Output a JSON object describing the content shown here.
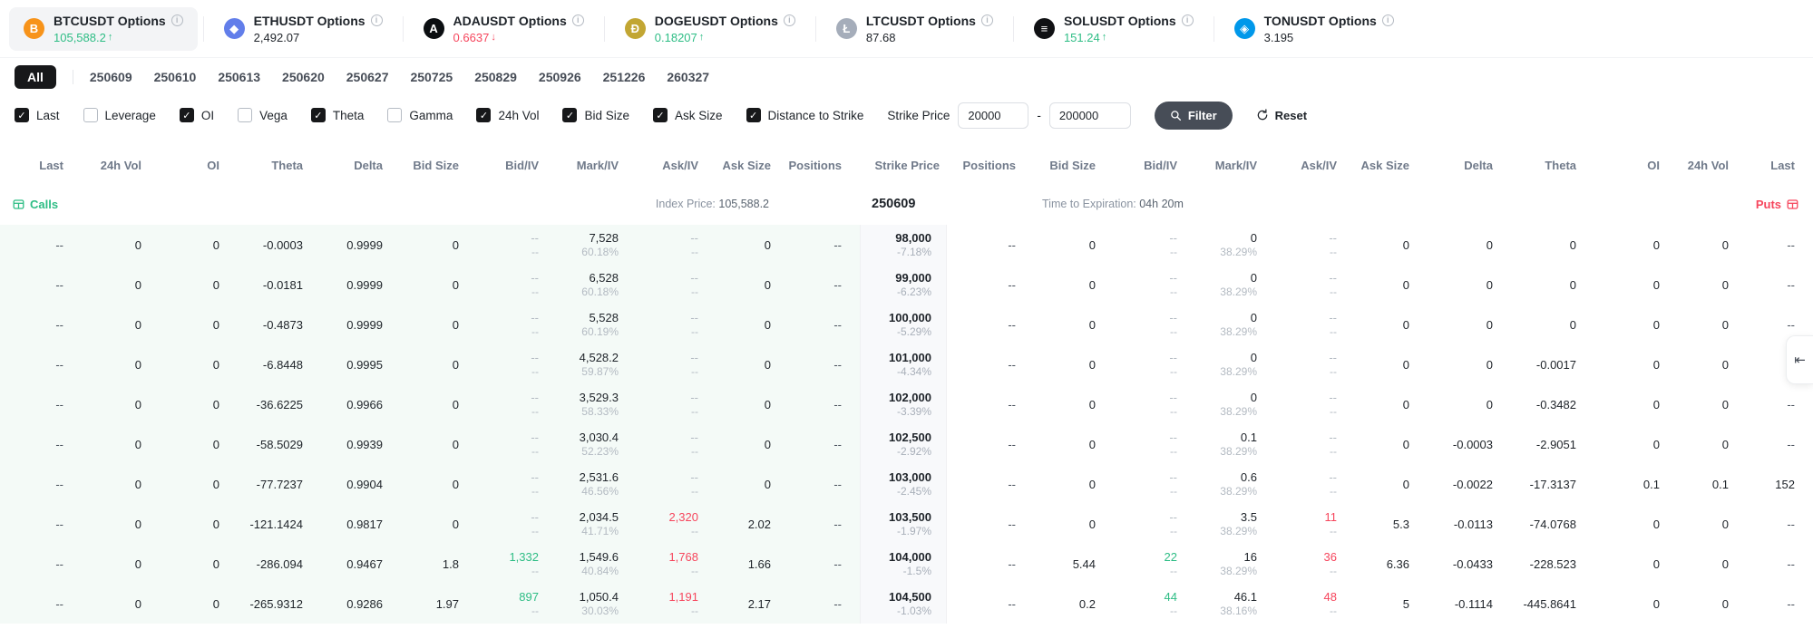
{
  "app": {
    "collapse_icon": "⇤"
  },
  "tickers": [
    {
      "symbol": "BTCUSDT Options",
      "price": "105,588.2",
      "dir": "up",
      "selected": true,
      "color": "#F7931A",
      "glyph": "B"
    },
    {
      "symbol": "ETHUSDT Options",
      "price": "2,492.07",
      "dir": "flat",
      "selected": false,
      "color": "#627EEA",
      "glyph": "◆"
    },
    {
      "symbol": "ADAUSDT Options",
      "price": "0.6637",
      "dir": "down",
      "selected": false,
      "color": "#0B0E11",
      "glyph": "A"
    },
    {
      "symbol": "DOGEUSDT Options",
      "price": "0.18207",
      "dir": "up",
      "selected": false,
      "color": "#C2A633",
      "glyph": "Ð"
    },
    {
      "symbol": "LTCUSDT Options",
      "price": "87.68",
      "dir": "flat",
      "selected": false,
      "color": "#A5ADBA",
      "glyph": "Ł"
    },
    {
      "symbol": "SOLUSDT Options",
      "price": "151.24",
      "dir": "up",
      "selected": false,
      "color": "#101114",
      "glyph": "≡"
    },
    {
      "symbol": "TONUSDT Options",
      "price": "3.195",
      "dir": "flat",
      "selected": false,
      "color": "#0098EA",
      "glyph": "◈"
    }
  ],
  "date_tabs": [
    {
      "label": "All",
      "active": true
    },
    {
      "label": "250609",
      "active": false
    },
    {
      "label": "250610",
      "active": false
    },
    {
      "label": "250613",
      "active": false
    },
    {
      "label": "250620",
      "active": false
    },
    {
      "label": "250627",
      "active": false
    },
    {
      "label": "250725",
      "active": false
    },
    {
      "label": "250829",
      "active": false
    },
    {
      "label": "250926",
      "active": false
    },
    {
      "label": "251226",
      "active": false
    },
    {
      "label": "260327",
      "active": false
    }
  ],
  "filters": [
    {
      "label": "Last",
      "checked": true
    },
    {
      "label": "Leverage",
      "checked": false
    },
    {
      "label": "OI",
      "checked": true
    },
    {
      "label": "Vega",
      "checked": false
    },
    {
      "label": "Theta",
      "checked": true
    },
    {
      "label": "Gamma",
      "checked": false
    },
    {
      "label": "24h Vol",
      "checked": true
    },
    {
      "label": "Bid Size",
      "checked": true
    },
    {
      "label": "Ask Size",
      "checked": true
    },
    {
      "label": "Distance to Strike",
      "checked": true
    }
  ],
  "strike_filter": {
    "label": "Strike Price",
    "min": "20000",
    "dash": "-",
    "max": "200000"
  },
  "buttons": {
    "filter": "Filter",
    "reset": "Reset"
  },
  "table": {
    "headers_left": [
      "Last",
      "24h Vol",
      "OI",
      "Theta",
      "Delta",
      "Bid Size",
      "Bid/IV",
      "Mark/IV",
      "Ask/IV",
      "Ask Size",
      "Positions"
    ],
    "strike_header": "Strike Price",
    "headers_right": [
      "Positions",
      "Bid Size",
      "Bid/IV",
      "Mark/IV",
      "Ask/IV",
      "Ask Size",
      "Delta",
      "Theta",
      "OI",
      "24h Vol",
      "Last"
    ],
    "calls_label": "Calls",
    "puts_label": "Puts",
    "index_label": "Index Price:",
    "index_value": "105,588.2",
    "expiry_code": "250609",
    "tte_label": "Time to Expiration:",
    "tte_value": "04h 20m",
    "rows": [
      {
        "call": {
          "last": "--",
          "vol": "0",
          "oi": "0",
          "theta": "-0.0003",
          "delta": "0.9999",
          "bid_size": "0",
          "bid": "--",
          "bid_iv": "--",
          "mark": "7,528",
          "mark_iv": "60.18%",
          "ask": "--",
          "ask_iv": "--",
          "ask_size": "0",
          "positions": "--"
        },
        "strike": {
          "price": "98,000",
          "pct": "-7.18%"
        },
        "put": {
          "positions": "--",
          "bid_size": "0",
          "bid": "--",
          "bid_iv": "--",
          "mark": "0",
          "mark_iv": "38.29%",
          "ask": "--",
          "ask_iv": "--",
          "ask_size": "0",
          "delta": "0",
          "theta": "0",
          "oi": "0",
          "vol": "0",
          "last": "--"
        }
      },
      {
        "call": {
          "last": "--",
          "vol": "0",
          "oi": "0",
          "theta": "-0.0181",
          "delta": "0.9999",
          "bid_size": "0",
          "bid": "--",
          "bid_iv": "--",
          "mark": "6,528",
          "mark_iv": "60.18%",
          "ask": "--",
          "ask_iv": "--",
          "ask_size": "0",
          "positions": "--"
        },
        "strike": {
          "price": "99,000",
          "pct": "-6.23%"
        },
        "put": {
          "positions": "--",
          "bid_size": "0",
          "bid": "--",
          "bid_iv": "--",
          "mark": "0",
          "mark_iv": "38.29%",
          "ask": "--",
          "ask_iv": "--",
          "ask_size": "0",
          "delta": "0",
          "theta": "0",
          "oi": "0",
          "vol": "0",
          "last": "--"
        }
      },
      {
        "call": {
          "last": "--",
          "vol": "0",
          "oi": "0",
          "theta": "-0.4873",
          "delta": "0.9999",
          "bid_size": "0",
          "bid": "--",
          "bid_iv": "--",
          "mark": "5,528",
          "mark_iv": "60.19%",
          "ask": "--",
          "ask_iv": "--",
          "ask_size": "0",
          "positions": "--"
        },
        "strike": {
          "price": "100,000",
          "pct": "-5.29%"
        },
        "put": {
          "positions": "--",
          "bid_size": "0",
          "bid": "--",
          "bid_iv": "--",
          "mark": "0",
          "mark_iv": "38.29%",
          "ask": "--",
          "ask_iv": "--",
          "ask_size": "0",
          "delta": "0",
          "theta": "0",
          "oi": "0",
          "vol": "0",
          "last": "--"
        }
      },
      {
        "call": {
          "last": "--",
          "vol": "0",
          "oi": "0",
          "theta": "-6.8448",
          "delta": "0.9995",
          "bid_size": "0",
          "bid": "--",
          "bid_iv": "--",
          "mark": "4,528.2",
          "mark_iv": "59.87%",
          "ask": "--",
          "ask_iv": "--",
          "ask_size": "0",
          "positions": "--"
        },
        "strike": {
          "price": "101,000",
          "pct": "-4.34%"
        },
        "put": {
          "positions": "--",
          "bid_size": "0",
          "bid": "--",
          "bid_iv": "--",
          "mark": "0",
          "mark_iv": "38.29%",
          "ask": "--",
          "ask_iv": "--",
          "ask_size": "0",
          "delta": "0",
          "theta": "-0.0017",
          "oi": "0",
          "vol": "0",
          "last": "--"
        }
      },
      {
        "call": {
          "last": "--",
          "vol": "0",
          "oi": "0",
          "theta": "-36.6225",
          "delta": "0.9966",
          "bid_size": "0",
          "bid": "--",
          "bid_iv": "--",
          "mark": "3,529.3",
          "mark_iv": "58.33%",
          "ask": "--",
          "ask_iv": "--",
          "ask_size": "0",
          "positions": "--"
        },
        "strike": {
          "price": "102,000",
          "pct": "-3.39%"
        },
        "put": {
          "positions": "--",
          "bid_size": "0",
          "bid": "--",
          "bid_iv": "--",
          "mark": "0",
          "mark_iv": "38.29%",
          "ask": "--",
          "ask_iv": "--",
          "ask_size": "0",
          "delta": "0",
          "theta": "-0.3482",
          "oi": "0",
          "vol": "0",
          "last": "--"
        }
      },
      {
        "call": {
          "last": "--",
          "vol": "0",
          "oi": "0",
          "theta": "-58.5029",
          "delta": "0.9939",
          "bid_size": "0",
          "bid": "--",
          "bid_iv": "--",
          "mark": "3,030.4",
          "mark_iv": "52.23%",
          "ask": "--",
          "ask_iv": "--",
          "ask_size": "0",
          "positions": "--"
        },
        "strike": {
          "price": "102,500",
          "pct": "-2.92%"
        },
        "put": {
          "positions": "--",
          "bid_size": "0",
          "bid": "--",
          "bid_iv": "--",
          "mark": "0.1",
          "mark_iv": "38.29%",
          "ask": "--",
          "ask_iv": "--",
          "ask_size": "0",
          "delta": "-0.0003",
          "theta": "-2.9051",
          "oi": "0",
          "vol": "0",
          "last": "--"
        }
      },
      {
        "call": {
          "last": "--",
          "vol": "0",
          "oi": "0",
          "theta": "-77.7237",
          "delta": "0.9904",
          "bid_size": "0",
          "bid": "--",
          "bid_iv": "--",
          "mark": "2,531.6",
          "mark_iv": "46.56%",
          "ask": "--",
          "ask_iv": "--",
          "ask_size": "0",
          "positions": "--"
        },
        "strike": {
          "price": "103,000",
          "pct": "-2.45%"
        },
        "put": {
          "positions": "--",
          "bid_size": "0",
          "bid": "--",
          "bid_iv": "--",
          "mark": "0.6",
          "mark_iv": "38.29%",
          "ask": "--",
          "ask_iv": "--",
          "ask_size": "0",
          "delta": "-0.0022",
          "theta": "-17.3137",
          "oi": "0.1",
          "vol": "0.1",
          "last": "152"
        }
      },
      {
        "call": {
          "last": "--",
          "vol": "0",
          "oi": "0",
          "theta": "-121.1424",
          "delta": "0.9817",
          "bid_size": "0",
          "bid": "--",
          "bid_iv": "--",
          "mark": "2,034.5",
          "mark_iv": "41.71%",
          "ask": "2,320",
          "ask_iv": "--",
          "ask_size": "2.02",
          "positions": "--"
        },
        "strike": {
          "price": "103,500",
          "pct": "-1.97%"
        },
        "put": {
          "positions": "--",
          "bid_size": "0",
          "bid": "--",
          "bid_iv": "--",
          "mark": "3.5",
          "mark_iv": "38.29%",
          "ask": "11",
          "ask_iv": "--",
          "ask_size": "5.3",
          "delta": "-0.0113",
          "theta": "-74.0768",
          "oi": "0",
          "vol": "0",
          "last": "--"
        }
      },
      {
        "call": {
          "last": "--",
          "vol": "0",
          "oi": "0",
          "theta": "-286.094",
          "delta": "0.9467",
          "bid_size": "1.8",
          "bid": "1,332",
          "bid_iv": "--",
          "mark": "1,549.6",
          "mark_iv": "40.84%",
          "ask": "1,768",
          "ask_iv": "--",
          "ask_size": "1.66",
          "positions": "--"
        },
        "strike": {
          "price": "104,000",
          "pct": "-1.5%"
        },
        "put": {
          "positions": "--",
          "bid_size": "5.44",
          "bid": "22",
          "bid_iv": "--",
          "mark": "16",
          "mark_iv": "38.29%",
          "ask": "36",
          "ask_iv": "--",
          "ask_size": "6.36",
          "delta": "-0.0433",
          "theta": "-228.523",
          "oi": "0",
          "vol": "0",
          "last": "--"
        }
      },
      {
        "call": {
          "last": "--",
          "vol": "0",
          "oi": "0",
          "theta": "-265.9312",
          "delta": "0.9286",
          "bid_size": "1.97",
          "bid": "897",
          "bid_iv": "--",
          "mark": "1,050.4",
          "mark_iv": "30.03%",
          "ask": "1,191",
          "ask_iv": "--",
          "ask_size": "2.17",
          "positions": "--"
        },
        "strike": {
          "price": "104,500",
          "pct": "-1.03%"
        },
        "put": {
          "positions": "--",
          "bid_size": "0.2",
          "bid": "44",
          "bid_iv": "--",
          "mark": "46.1",
          "mark_iv": "38.16%",
          "ask": "48",
          "ask_iv": "--",
          "ask_size": "5",
          "delta": "-0.1114",
          "theta": "-445.8641",
          "oi": "0",
          "vol": "0",
          "last": "--"
        }
      }
    ]
  }
}
